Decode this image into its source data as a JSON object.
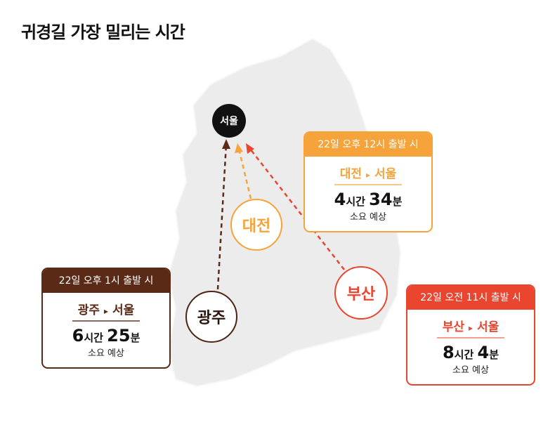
{
  "title": "귀경길 가장 밀리는 시간",
  "cities": {
    "seoul": "서울",
    "daejeon": "대전",
    "gwangju": "광주",
    "busan": "부산"
  },
  "colors": {
    "daejeon": "#f5a33a",
    "gwangju": "#5a2a17",
    "busan": "#e9452f",
    "seoul": "#111111",
    "map": "#ececec"
  },
  "routes": [
    {
      "header": "22일 오후 12시 출발 시",
      "route_from": "대전",
      "arrow": "▸",
      "route_to": "서울",
      "hours": "4",
      "hours_unit": "시간",
      "minutes": "34",
      "minutes_unit": "분",
      "note": "소요 예상"
    },
    {
      "header": "22일 오후 1시 출발 시",
      "route_from": "광주",
      "arrow": "▸",
      "route_to": "서울",
      "hours": "6",
      "hours_unit": "시간",
      "minutes": "25",
      "minutes_unit": "분",
      "note": "소요 예상"
    },
    {
      "header": "22일 오전 11시 출발 시",
      "route_from": "부산",
      "arrow": "▸",
      "route_to": "서울",
      "hours": "8",
      "hours_unit": "시간",
      "minutes": "4",
      "minutes_unit": "분",
      "note": "소요 예상"
    }
  ]
}
